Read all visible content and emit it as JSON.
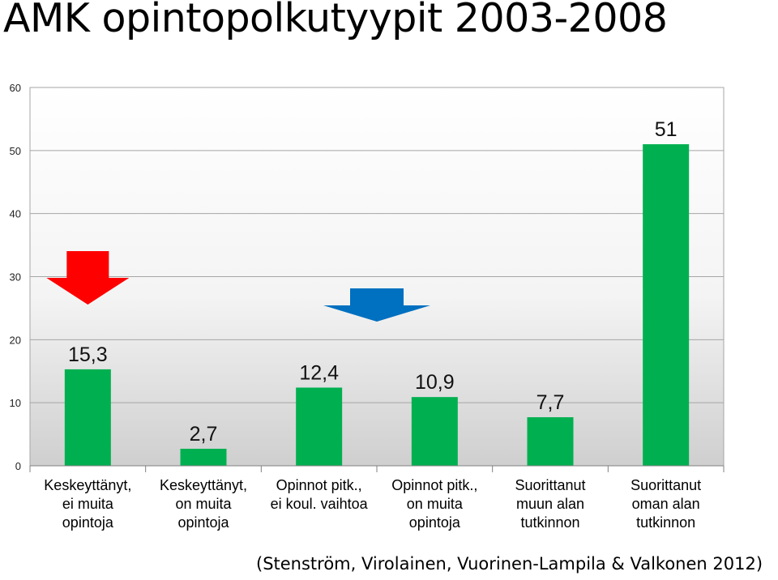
{
  "title": "AMK opintopolkutyypit 2003-2008",
  "source": "(Stenström, Virolainen, Vuorinen-Lampila & Valkonen 2012)",
  "colors": {
    "bar": "#00b050",
    "arrow_red": "#ff0000",
    "arrow_blue": "#0070c0"
  },
  "chart_data": {
    "type": "bar",
    "title": "AMK opintopolkutyypit 2003-2008",
    "xlabel": "",
    "ylabel": "",
    "ylim": [
      0,
      60
    ],
    "yticks": [
      "0",
      "10",
      "20",
      "30",
      "40",
      "50",
      "60"
    ],
    "grid": true,
    "legend": "none",
    "categories": [
      "Keskeyttänyt, ei muita opintoja",
      "Keskeyttänyt, on muita opintoja",
      "Opinnot pitk., ei koul. vaihtoa",
      "Opinnot pitk., on muita opintoja",
      "Suorittanut muun alan tutkinnon",
      "Suorittanut oman alan tutkinnon"
    ],
    "category_lines": [
      [
        "Keskeyttänyt,",
        "ei muita",
        "opintoja"
      ],
      [
        "Keskeyttänyt,",
        "on muita",
        "opintoja"
      ],
      [
        "Opinnot pitk.,",
        "ei koul. vaihtoa"
      ],
      [
        "Opinnot pitk.,",
        "on muita",
        "opintoja"
      ],
      [
        "Suorittanut",
        "muun alan",
        "tutkinnon"
      ],
      [
        "Suorittanut",
        "oman alan",
        "tutkinnon"
      ]
    ],
    "values": [
      15.3,
      2.7,
      12.4,
      10.9,
      7.7,
      51
    ],
    "data_labels": [
      "15,3",
      "2,7",
      "12,4",
      "10,9",
      "7,7",
      "51"
    ],
    "annotations": [
      {
        "shape": "down-arrow",
        "color": "red",
        "category_index": 0
      },
      {
        "shape": "down-arrow",
        "color": "blue",
        "category_index": 2.5
      }
    ]
  }
}
